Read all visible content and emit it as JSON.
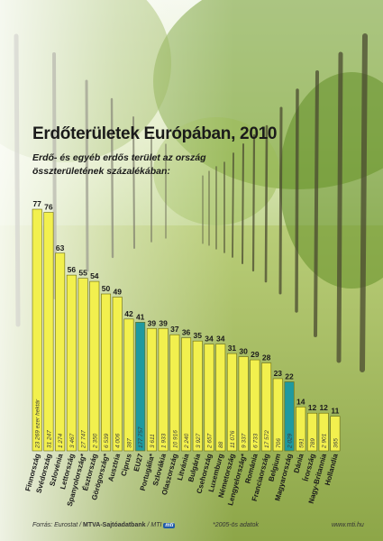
{
  "title": "Erdőterületek Európában, 2010",
  "subtitle": "Erdő- és egyéb erdős terület az ország összterületének százalékában:",
  "unit_note": "23 269 ezer hektár",
  "footer": {
    "source_prefix": "Forrás: Eurostat / ",
    "source_bold": "MTVA-Sajtóadatbank",
    "source_sep": " / MTI",
    "mti": "mti",
    "note": "*2005-ös adatok",
    "url": "www.mti.hu"
  },
  "colors": {
    "bar": "#f2f04e",
    "highlight": "#1f9aa0",
    "bar_stroke": "#6a6a10"
  },
  "chart_data": {
    "type": "bar",
    "title": "Erdőterületek Európában, 2010",
    "categories": [
      "Finnország",
      "Svédország",
      "Szlovénia",
      "Lettország",
      "Spanyolország*",
      "Észtország",
      "Görögország*",
      "Ausztria",
      "Ciprus",
      "EU27",
      "Portugália*",
      "Szlovákia",
      "Olaszország",
      "Litvánia",
      "Bulgária",
      "Csehország",
      "Luxemburg",
      "Németország",
      "Lengyelország*",
      "Románia",
      "Franciaország",
      "Belgium",
      "Magyarország",
      "Dánia",
      "Írország",
      "Nagy-Britannia",
      "Hollandia"
    ],
    "values": [
      77,
      76,
      63,
      56,
      55,
      54,
      50,
      49,
      42,
      41,
      39,
      39,
      37,
      36,
      35,
      34,
      34,
      31,
      30,
      29,
      28,
      23,
      22,
      14,
      12,
      12,
      11
    ],
    "areas": [
      "23 269 ezer hektár",
      "31 247",
      "1 274",
      "3 467",
      "27 747",
      "2 350",
      "6 539",
      "4 006",
      "387",
      "177 757",
      "3 611",
      "1 933",
      "10 916",
      "2 240",
      "3 927",
      "2 657",
      "88",
      "11 076",
      "9 337",
      "6 733",
      "17 572",
      "706",
      "2 029",
      "591",
      "789",
      "2 901",
      "365"
    ],
    "highlight": [
      "EU27",
      "Magyarország"
    ],
    "ylim": [
      0,
      80
    ],
    "value_labels": true
  }
}
